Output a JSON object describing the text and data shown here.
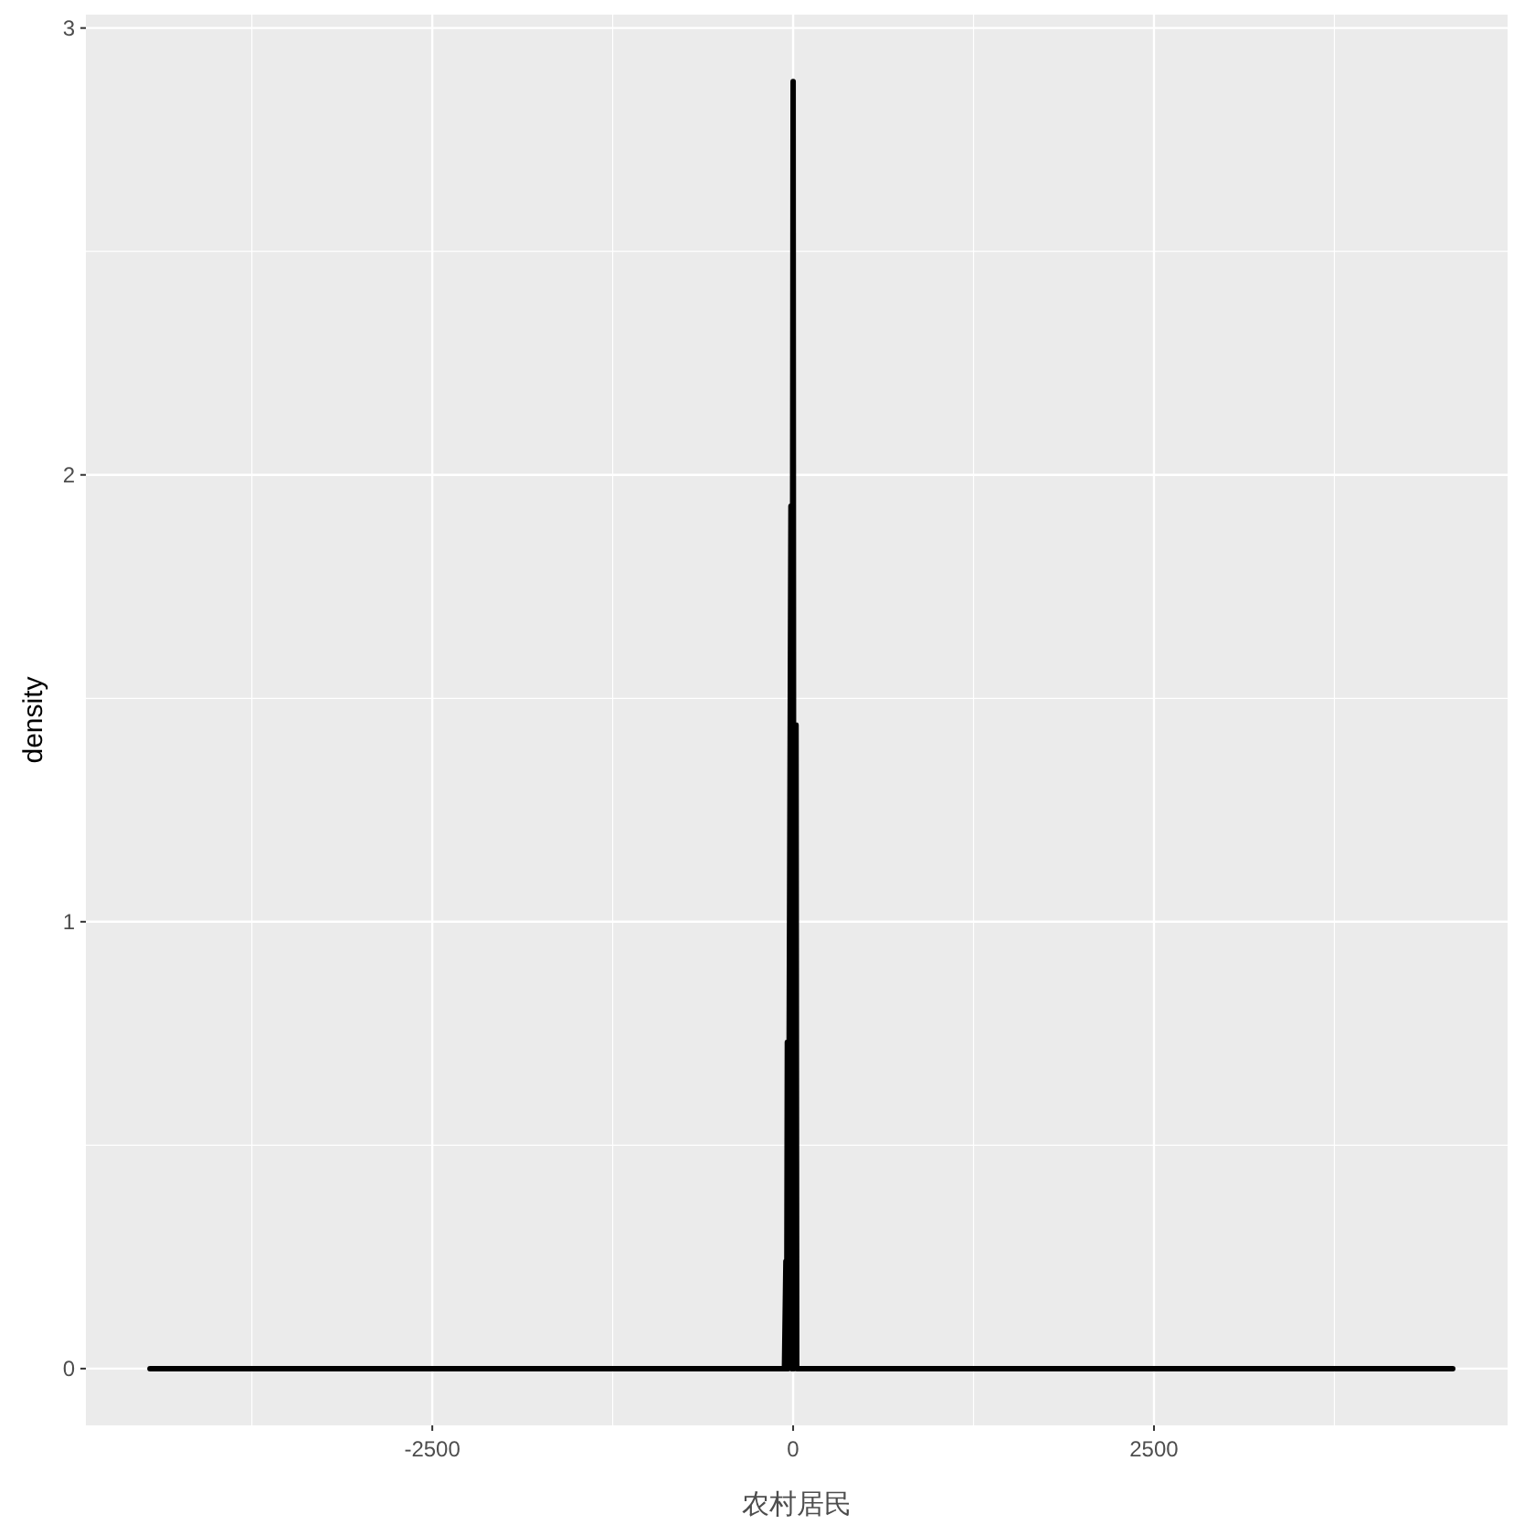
{
  "chart_data": {
    "type": "line",
    "xlabel": "农村居民",
    "ylabel": "density",
    "x": [
      -4456,
      -60,
      -50,
      -45,
      -40,
      -35,
      -15,
      -10,
      0,
      5,
      20,
      25,
      40,
      4570
    ],
    "series": [
      {
        "color": "#000000",
        "values": [
          0,
          0,
          0.24,
          0,
          0.73,
          0,
          1.93,
          0,
          2.88,
          0,
          1.44,
          0,
          0,
          0
        ]
      }
    ],
    "xlim": [
      -4900,
      4950
    ],
    "ylim": [
      -0.127,
      3.03
    ],
    "xticks": [
      -2500,
      0,
      2500
    ],
    "yticks": [
      0,
      1,
      2,
      3
    ],
    "grid": true,
    "line_style": "solid"
  }
}
